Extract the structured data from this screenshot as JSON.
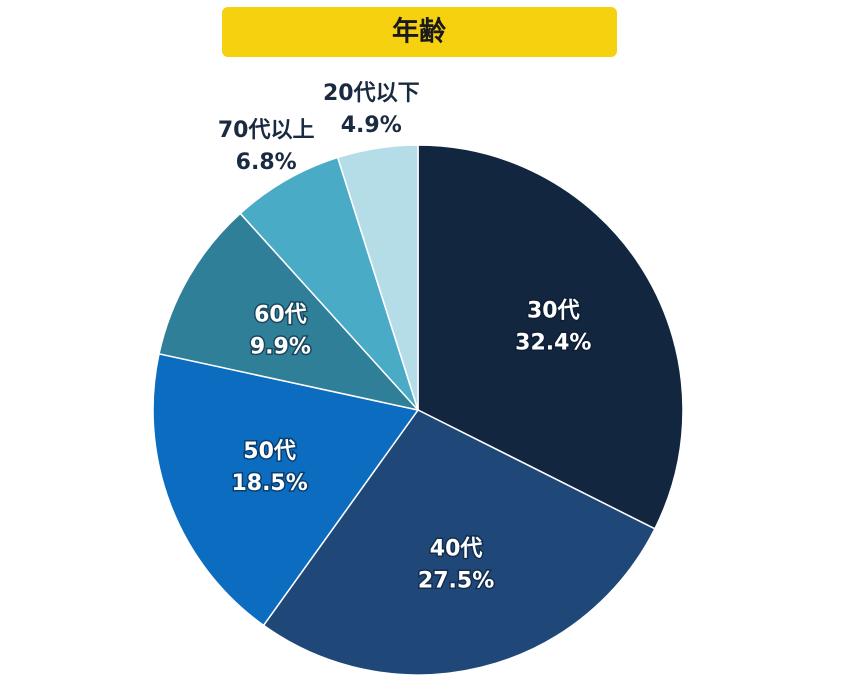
{
  "chart_data": {
    "type": "pie",
    "title": "年齢",
    "categories": [
      "30代",
      "40代",
      "50代",
      "60代",
      "70代以上",
      "20代以下"
    ],
    "values": [
      32.4,
      27.5,
      18.5,
      9.9,
      6.8,
      4.9
    ],
    "value_labels": [
      "32.4%",
      "27.5%",
      "18.5%",
      "9.9%",
      "6.8%",
      "4.9%"
    ],
    "colors": [
      "#13263f",
      "#1f4778",
      "#0b6cc0",
      "#2f7f98",
      "#4aabc6",
      "#b5dde8"
    ]
  }
}
